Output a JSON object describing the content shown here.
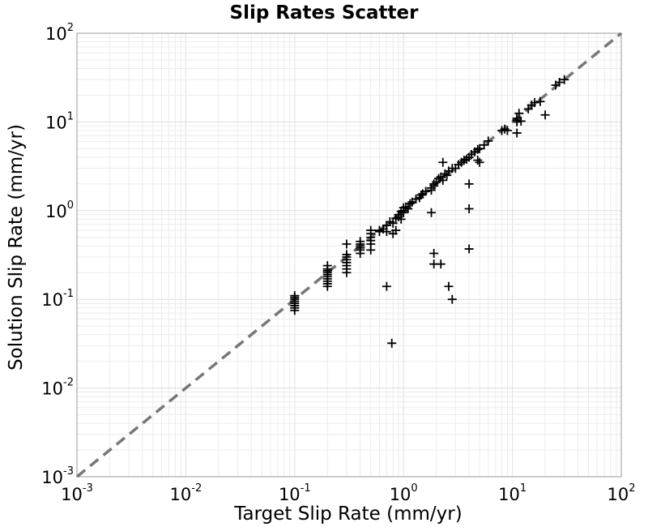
{
  "chart_data": {
    "type": "scatter",
    "title": "Slip Rates Scatter",
    "xlabel": "Target Slip Rate (mm/yr)",
    "ylabel": "Solution Slip Rate (mm/yr)",
    "xscale": "log",
    "yscale": "log",
    "xlim": [
      0.001,
      100
    ],
    "ylim": [
      0.001,
      100
    ],
    "grid": true,
    "marker": "plus",
    "marker_color": "#000000",
    "x_ticks": [
      {
        "base": "10",
        "exp": "-3"
      },
      {
        "base": "10",
        "exp": "-2"
      },
      {
        "base": "10",
        "exp": "-1"
      },
      {
        "base": "10",
        "exp": "0"
      },
      {
        "base": "10",
        "exp": "1"
      },
      {
        "base": "10",
        "exp": "2"
      }
    ],
    "y_ticks": [
      {
        "base": "10",
        "exp": "-3"
      },
      {
        "base": "10",
        "exp": "-2"
      },
      {
        "base": "10",
        "exp": "-1"
      },
      {
        "base": "10",
        "exp": "0"
      },
      {
        "base": "10",
        "exp": "1"
      },
      {
        "base": "10",
        "exp": "2"
      }
    ],
    "reference_line": {
      "type": "y=x",
      "style": "dashed",
      "color": "#777777"
    },
    "points": [
      [
        0.1,
        0.075
      ],
      [
        0.1,
        0.08
      ],
      [
        0.1,
        0.085
      ],
      [
        0.1,
        0.09
      ],
      [
        0.1,
        0.095
      ],
      [
        0.1,
        0.1
      ],
      [
        0.1,
        0.105
      ],
      [
        0.1,
        0.11
      ],
      [
        0.2,
        0.14
      ],
      [
        0.2,
        0.15
      ],
      [
        0.2,
        0.16
      ],
      [
        0.2,
        0.17
      ],
      [
        0.2,
        0.18
      ],
      [
        0.2,
        0.19
      ],
      [
        0.2,
        0.2
      ],
      [
        0.2,
        0.21
      ],
      [
        0.2,
        0.22
      ],
      [
        0.2,
        0.24
      ],
      [
        0.3,
        0.2
      ],
      [
        0.3,
        0.22
      ],
      [
        0.3,
        0.24
      ],
      [
        0.3,
        0.26
      ],
      [
        0.3,
        0.28
      ],
      [
        0.3,
        0.3
      ],
      [
        0.3,
        0.32
      ],
      [
        0.3,
        0.42
      ],
      [
        0.4,
        0.33
      ],
      [
        0.4,
        0.36
      ],
      [
        0.4,
        0.38
      ],
      [
        0.4,
        0.4
      ],
      [
        0.4,
        0.42
      ],
      [
        0.4,
        0.45
      ],
      [
        0.5,
        0.36
      ],
      [
        0.5,
        0.42
      ],
      [
        0.5,
        0.46
      ],
      [
        0.5,
        0.5
      ],
      [
        0.5,
        0.55
      ],
      [
        0.5,
        0.6
      ],
      [
        0.6,
        0.58
      ],
      [
        0.6,
        0.6
      ],
      [
        0.65,
        0.62
      ],
      [
        0.7,
        0.68
      ],
      [
        0.7,
        0.58
      ],
      [
        0.75,
        0.75
      ],
      [
        0.8,
        0.72
      ],
      [
        0.8,
        0.55
      ],
      [
        0.85,
        0.82
      ],
      [
        0.85,
        0.6
      ],
      [
        0.9,
        0.9
      ],
      [
        0.9,
        0.85
      ],
      [
        0.95,
        0.98
      ],
      [
        0.95,
        0.8
      ],
      [
        1.0,
        0.95
      ],
      [
        1.0,
        1.0
      ],
      [
        1.0,
        1.08
      ],
      [
        1.05,
        1.1
      ],
      [
        1.1,
        1.05
      ],
      [
        1.15,
        1.2
      ],
      [
        1.2,
        1.25
      ],
      [
        1.3,
        1.35
      ],
      [
        1.4,
        1.4
      ],
      [
        1.45,
        1.5
      ],
      [
        1.5,
        1.55
      ],
      [
        1.6,
        1.65
      ],
      [
        1.8,
        1.7
      ],
      [
        1.8,
        1.8
      ],
      [
        1.9,
        1.9
      ],
      [
        1.9,
        2.0
      ],
      [
        2.0,
        2.1
      ],
      [
        2.1,
        2.3
      ],
      [
        2.2,
        2.4
      ],
      [
        2.3,
        2.2
      ],
      [
        2.4,
        2.6
      ],
      [
        2.5,
        2.5
      ],
      [
        2.3,
        3.5
      ],
      [
        2.6,
        2.8
      ],
      [
        2.8,
        3.0
      ],
      [
        3.0,
        3.0
      ],
      [
        3.2,
        3.3
      ],
      [
        3.4,
        3.5
      ],
      [
        3.6,
        3.7
      ],
      [
        3.8,
        3.8
      ],
      [
        4.0,
        4.0
      ],
      [
        4.2,
        4.3
      ],
      [
        4.5,
        4.6
      ],
      [
        4.8,
        4.9
      ],
      [
        5.0,
        5.0
      ],
      [
        5.5,
        5.5
      ],
      [
        6.0,
        6.1
      ],
      [
        5.0,
        3.5
      ],
      [
        4.8,
        3.7
      ],
      [
        8.0,
        8.0
      ],
      [
        8.5,
        8.3
      ],
      [
        9.0,
        8.0
      ],
      [
        11.0,
        10.0
      ],
      [
        11.0,
        10.5
      ],
      [
        11.0,
        11.0
      ],
      [
        11.5,
        12.5
      ],
      [
        12.0,
        10.2
      ],
      [
        11.0,
        7.5
      ],
      [
        14.0,
        14.0
      ],
      [
        15.0,
        15.5
      ],
      [
        16.0,
        16.5
      ],
      [
        18.0,
        17.0
      ],
      [
        20.0,
        12.0
      ],
      [
        25.0,
        26.0
      ],
      [
        27.0,
        28.0
      ],
      [
        30.0,
        30.0
      ],
      [
        0.7,
        0.14
      ],
      [
        0.78,
        0.032
      ],
      [
        1.9,
        0.33
      ],
      [
        1.9,
        0.25
      ],
      [
        2.2,
        0.25
      ],
      [
        2.6,
        0.14
      ],
      [
        2.8,
        0.1
      ],
      [
        4.0,
        2.0
      ],
      [
        4.0,
        1.05
      ],
      [
        4.0,
        0.37
      ],
      [
        1.8,
        0.95
      ]
    ]
  }
}
